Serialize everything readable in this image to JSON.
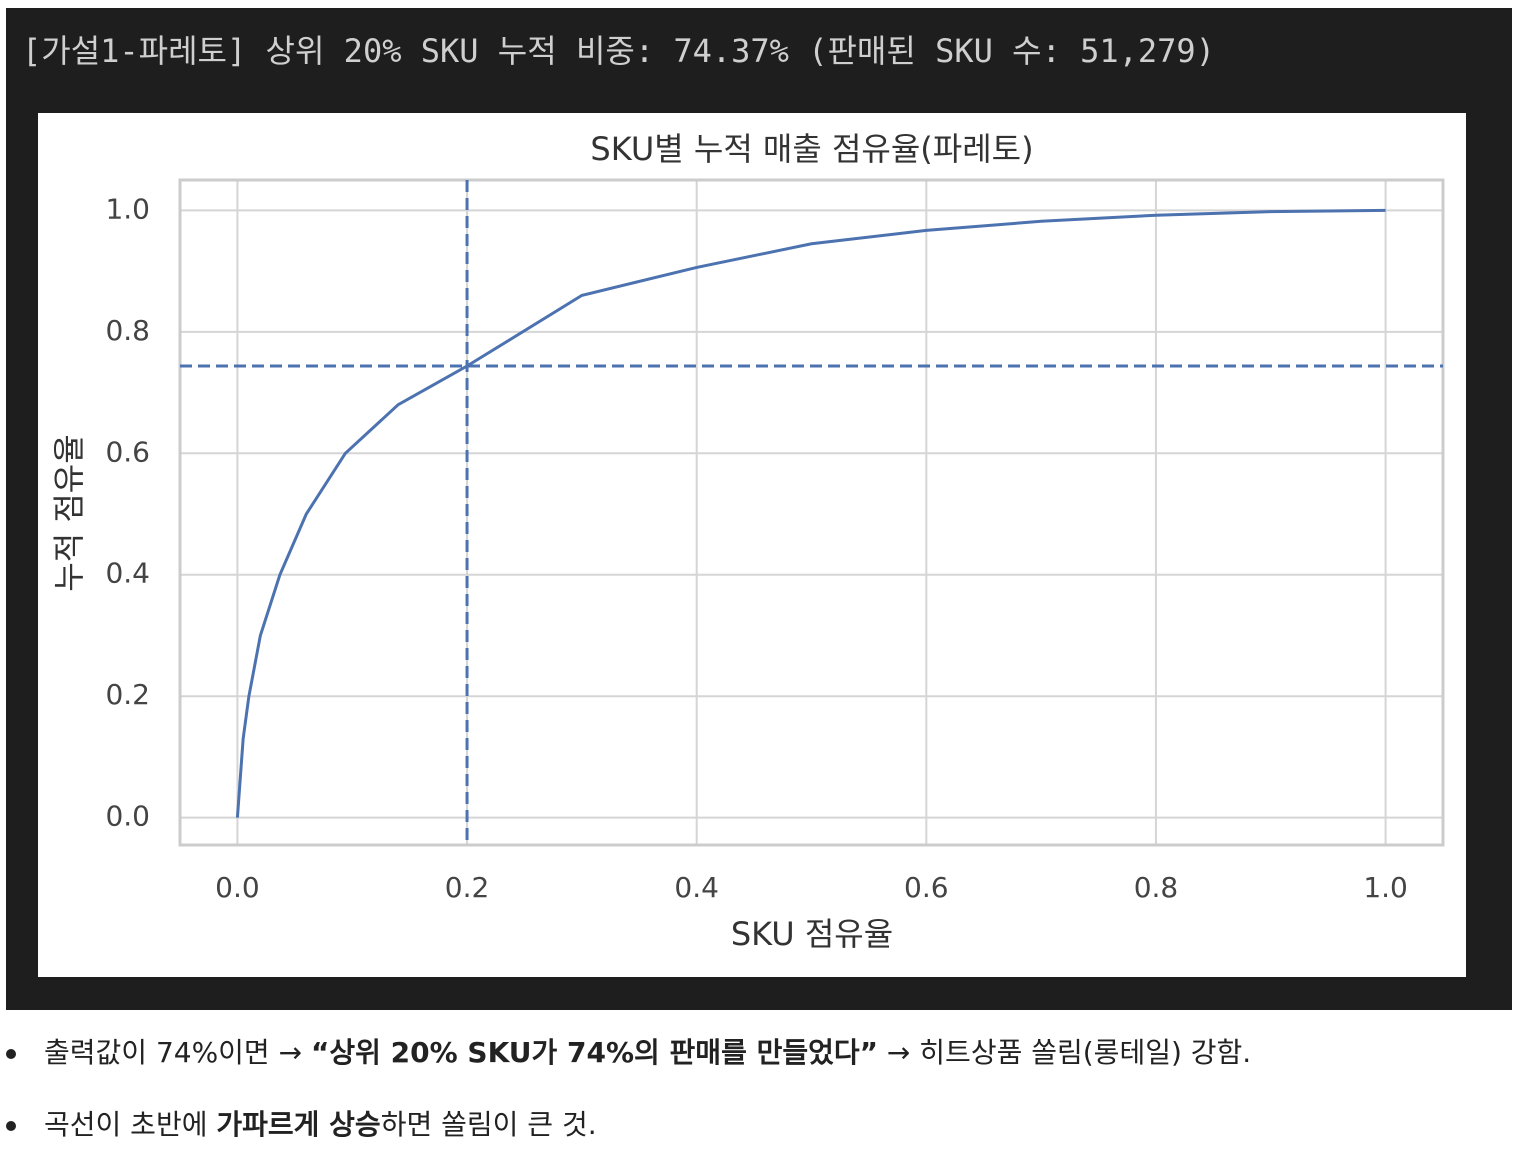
{
  "output_text": "[가설1-파레토] 상위 20% SKU 누적 비중: 74.37% (판매된 SKU 수: 51,279)",
  "chart_data": {
    "type": "line",
    "title": "SKU별 누적 매출 점유율(파레토)",
    "xlabel": "SKU 점유율",
    "ylabel": "누적 점유율",
    "x": [
      0,
      0.005,
      0.01,
      0.02,
      0.037,
      0.06,
      0.094,
      0.14,
      0.2,
      0.3,
      0.4,
      0.5,
      0.6,
      0.7,
      0.8,
      0.9,
      1.0
    ],
    "values": [
      0,
      0.13,
      0.2,
      0.3,
      0.4,
      0.5,
      0.6,
      0.68,
      0.7437,
      0.86,
      0.906,
      0.945,
      0.967,
      0.982,
      0.992,
      0.998,
      1.0
    ],
    "color": "#4c72b0",
    "vline": 0.2,
    "hline": 0.7437,
    "xlim": [
      -0.05,
      1.05
    ],
    "ylim": [
      -0.045,
      1.05
    ],
    "xticks": [
      {
        "value": 0,
        "label": "0.0"
      },
      0.2,
      0.4,
      0.6,
      0.8,
      {
        "value": 1,
        "label": "1.0"
      }
    ],
    "yticks": [
      {
        "value": 0,
        "label": "0.0"
      },
      0.2,
      0.4,
      0.6,
      0.8,
      {
        "value": 1,
        "label": "1.0"
      }
    ],
    "grid": true
  },
  "bullets": [
    [
      {
        "text": "출력값이 74%이면 → ",
        "bold": false
      },
      {
        "text": "“상위 20% SKU가 74%의 판매를 만들었다”",
        "bold": true
      },
      {
        "text": " → 히트상품 쏠림(롱테일) 강함.",
        "bold": false
      }
    ],
    [
      {
        "text": "곡선이 초반에 ",
        "bold": false
      },
      {
        "text": "가파르게 상승",
        "bold": true
      },
      {
        "text": "하면 쏠림이 큰 것.",
        "bold": false
      }
    ]
  ]
}
